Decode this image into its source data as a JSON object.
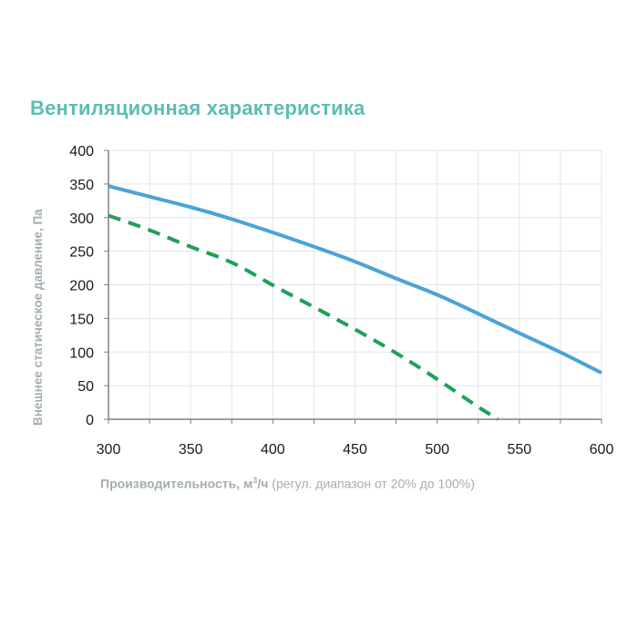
{
  "title": "Вентиляционная характеристика",
  "colors": {
    "title": "#5cbdb3",
    "series_solid": "#4aa3d8",
    "series_dashed": "#1fa05a",
    "axis_label": "#a3adb3",
    "grid": "#dfe6ee",
    "axis": "#808080"
  },
  "axes": {
    "ylabel": "Внешнее статическое давление, Па",
    "xlabel_bold": "Производительность, м",
    "xlabel_sup": "3",
    "xlabel_bold_tail": "/ч",
    "xlabel_note": " (регул. диапазон от 20% до 100%)"
  },
  "chart_data": {
    "type": "line",
    "title": "Вентиляционная характеристика",
    "xlabel": "Производительность, м³/ч (регул. диапазон от 20% до 100%)",
    "ylabel": "Внешнее статическое давление, Па",
    "xlim": [
      300,
      600
    ],
    "ylim": [
      0,
      400
    ],
    "x_ticks": [
      300,
      350,
      400,
      450,
      500,
      550,
      600
    ],
    "y_ticks": [
      0,
      50,
      100,
      150,
      200,
      250,
      300,
      350,
      400
    ],
    "grid": true,
    "legend": null,
    "series": [
      {
        "name": "solid",
        "style": "solid",
        "color": "#4aa3d8",
        "x": [
          300,
          325,
          350,
          375,
          400,
          425,
          450,
          475,
          500,
          525,
          550,
          575,
          600
        ],
        "y": [
          347,
          331,
          316,
          298,
          278,
          257,
          235,
          209,
          186,
          157,
          128,
          100,
          69
        ]
      },
      {
        "name": "dashed",
        "style": "dashed",
        "color": "#1fa05a",
        "x": [
          300,
          325,
          350,
          375,
          400,
          425,
          450,
          475,
          500,
          525,
          537
        ],
        "y": [
          303,
          282,
          256,
          235,
          199,
          167,
          134,
          99,
          60,
          18,
          0
        ]
      }
    ]
  }
}
